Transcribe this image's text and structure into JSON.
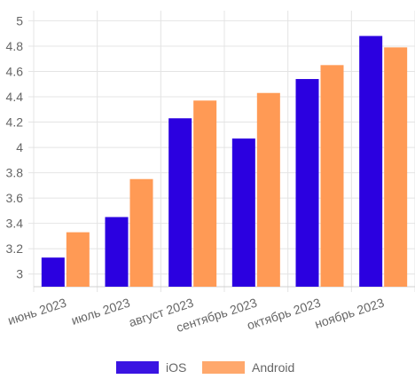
{
  "chart_data": {
    "type": "bar",
    "categories": [
      "июнь 2023",
      "июль 2023",
      "август 2023",
      "сентябрь 2023",
      "октябрь 2023",
      "ноябрь 2023"
    ],
    "series": [
      {
        "name": "iOS",
        "values": [
          3.13,
          3.45,
          4.23,
          4.07,
          4.54,
          4.88
        ],
        "color": "#2b00e0"
      },
      {
        "name": "Android",
        "values": [
          3.33,
          3.75,
          4.37,
          4.43,
          4.65,
          4.79
        ],
        "color": "#ff9a55"
      }
    ],
    "yticks": [
      "3",
      "3.2",
      "3.4",
      "3.6",
      "3.8",
      "4",
      "4.2",
      "4.4",
      "4.6",
      "4.8",
      "5"
    ],
    "ylim": [
      2.9,
      5.08
    ],
    "grid": true,
    "legend_position": "bottom"
  }
}
